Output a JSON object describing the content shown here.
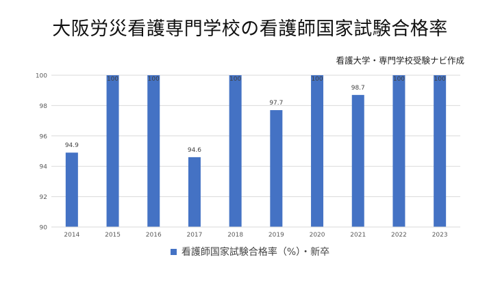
{
  "title": "大阪労災看護専門学校の看護師国家試験合格率",
  "subtitle": "看護大学・専門学校受験ナビ作成",
  "colors": {
    "bar": "#4472C4",
    "grid": "#D9D9D9",
    "axis_text": "#595959"
  },
  "chart_data": {
    "type": "bar",
    "categories": [
      "2014",
      "2015",
      "2016",
      "2017",
      "2018",
      "2019",
      "2020",
      "2021",
      "2022",
      "2023"
    ],
    "series": [
      {
        "name": "看護師国家試験合格率（%）・新卒",
        "values": [
          94.9,
          100,
          100,
          94.6,
          100,
          97.7,
          100,
          98.7,
          100,
          100
        ]
      }
    ],
    "data_labels": [
      "94.9",
      "100",
      "100",
      "94.6",
      "100",
      "97.7",
      "100",
      "98.7",
      "100",
      "100"
    ],
    "ylim": [
      90,
      100
    ],
    "yticks": [
      90,
      92,
      94,
      96,
      98,
      100
    ],
    "ytick_labels": [
      "90",
      "92",
      "94",
      "96",
      "98",
      "100"
    ],
    "grid": true,
    "legend_position": "bottom"
  }
}
